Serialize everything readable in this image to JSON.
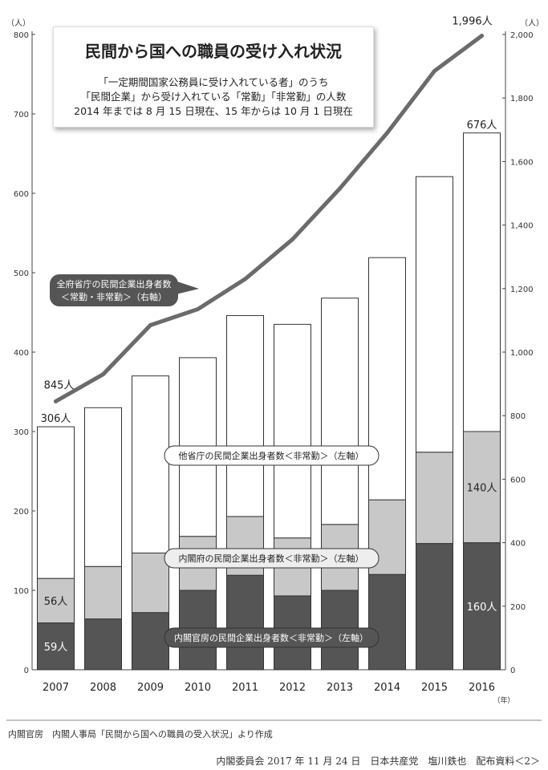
{
  "chart_data": {
    "type": "bar",
    "stacked": true,
    "title": "民間から国への職員の受け入れ状況",
    "subtitle": [
      "「一定期間国家公務員に受け入れている者」のうち",
      "「民間企業」から受け入れている「常勤」「非常勤」の人数",
      "2014 年までは 8 月 15 日現在、15 年からは 10 月 1 日現在"
    ],
    "categories": [
      "2007",
      "2008",
      "2009",
      "2010",
      "2011",
      "2012",
      "2013",
      "2014",
      "2015",
      "2016"
    ],
    "ylim_left": [
      0,
      800
    ],
    "ylim_right": [
      0,
      2000
    ],
    "yticks_left": [
      0,
      100,
      200,
      300,
      400,
      500,
      600,
      700,
      800
    ],
    "yticks_right": [
      0,
      200,
      400,
      600,
      800,
      1000,
      1200,
      1400,
      1600,
      1800,
      2000
    ],
    "ytick_labels_right": [
      "0",
      "200",
      "400",
      "600",
      "800",
      "1,000",
      "1,200",
      "1,400",
      "1,600",
      "1,800",
      "2,000"
    ],
    "left_unit": "（人）",
    "right_unit": "（人）",
    "x_unit": "（年）",
    "series": [
      {
        "name": "内閣官房の民間企業出身者数＜非常勤＞（左軸）",
        "axis": "left",
        "color": "#555555",
        "values": [
          59,
          64,
          72,
          100,
          119,
          93,
          100,
          120,
          159,
          160
        ]
      },
      {
        "name": "内閣府の民間企業出身者数＜非常勤＞（左軸）",
        "axis": "left",
        "color": "#c8c8c8",
        "values": [
          56,
          66,
          75,
          68,
          74,
          73,
          83,
          94,
          115,
          140
        ]
      },
      {
        "name": "他省庁の民間企業出身者数＜非常勤＞（左軸）",
        "axis": "left",
        "color": "#ffffff",
        "values": [
          191,
          200,
          223,
          225,
          253,
          269,
          285,
          305,
          347,
          376
        ]
      },
      {
        "name": "全府省庁の民間企業出身者数＜常勤・非常勤＞（右軸）",
        "axis": "right",
        "type": "line",
        "color": "#6b6b6b",
        "values": [
          845,
          930,
          1085,
          1135,
          1230,
          1355,
          1515,
          1690,
          1885,
          1996
        ]
      }
    ],
    "data_labels": {
      "bar_2007_total": "306人",
      "bar_2007_s2": "56人",
      "bar_2007_s1": "59人",
      "bar_2016_total": "676人",
      "bar_2016_s2": "140人",
      "bar_2016_s1": "160人",
      "line_2007": "845人",
      "line_2016": "1,996人"
    },
    "annotations": {
      "line_label": [
        "全府省庁の民間企業出身者数",
        "＜常勤・非常勤＞（右軸）"
      ],
      "other_label": "他省庁の民間企業出身者数＜非常勤＞（左軸）",
      "cao_label": "内閣府の民間企業出身者数＜非常勤＞（左軸）",
      "cas_label": "内閣官房の民間企業出身者数＜非常勤＞（左軸）"
    }
  },
  "footer": {
    "source": "内閣官房　内閣人事局「民間から国への職員の受入状況」より作成",
    "credit": "内閣委員会 2017 年 11 月 24 日　日本共産党　塩川鉄也　配布資料＜2＞"
  }
}
